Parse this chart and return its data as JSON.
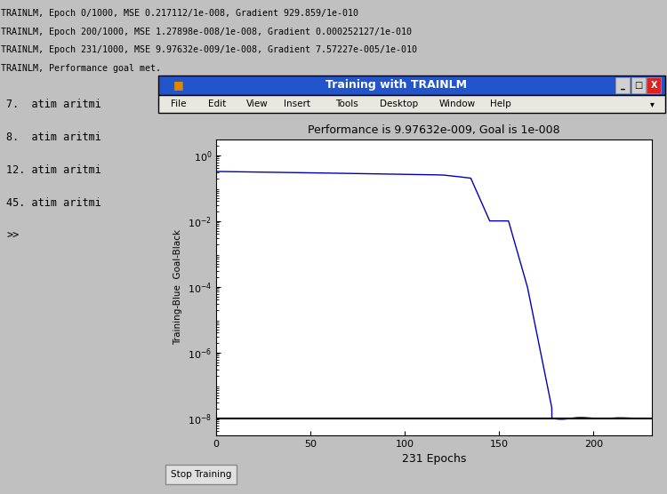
{
  "console_lines": [
    "TRAINLM, Epoch 0/1000, MSE 0.217112/1e-008, Gradient 929.859/1e-010",
    "TRAINLM, Epoch 200/1000, MSE 1.27898e-008/1e-008, Gradient 0.000252127/1e-010",
    "TRAINLM, Epoch 231/1000, MSE 9.97632e-009/1e-008, Gradient 7.57227e-005/1e-010",
    "TRAINLM, Performance goal met."
  ],
  "arrhythmia_lines": [
    "7.  atim aritmi",
    "8.  atim aritmi",
    "12. atim aritmi",
    "45. atim aritmi",
    ">>"
  ],
  "window_title": "Training with TRAINLM",
  "plot_title": "Performance is 9.97632e-009, Goal is 1e-008",
  "xlabel": "231 Epochs",
  "ylabel": "Training-Blue  Goal-Black",
  "goal_value": 1e-08,
  "total_epochs": 231,
  "bg_color": "#c0c0c0",
  "plot_bg": "#ffffff",
  "title_bar_color": "#2255cc",
  "line_color": "#0000bb",
  "goal_line_color": "#000000",
  "fig_bg": "#c0c0c0"
}
